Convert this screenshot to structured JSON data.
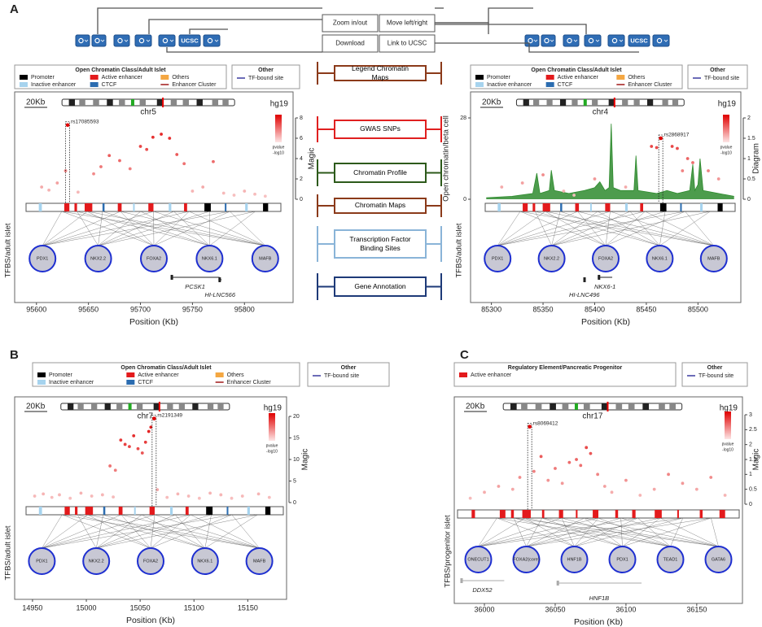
{
  "figure": {
    "toolbar": {
      "callouts": [
        "Zoom in/out",
        "Move left/right",
        "Download",
        "Link to UCSC"
      ],
      "button_label": "UCSC"
    },
    "guide": [
      {
        "text": "Legend Chromatin Maps",
        "color": "#8b3a1a"
      },
      {
        "text": "GWAS SNPs",
        "color": "#e02020"
      },
      {
        "text": "Chromatin Profile",
        "color": "#2d5a1b"
      },
      {
        "text": "Chromatin Maps",
        "color": "#8b3a1a"
      },
      {
        "text": "Transcription Factor Binding Sites",
        "color": "#8ab4d8"
      },
      {
        "text": "Gene Annotation",
        "color": "#1e3a78"
      }
    ],
    "panels": [
      {
        "label": "A",
        "legend_title": "Open Chromatin Class/Adult Islet",
        "legend_items": [
          {
            "name": "Promoter",
            "color": "#000000"
          },
          {
            "name": "Inactive enhancer",
            "color": "#a6d3ee"
          },
          {
            "name": "Active enhancer",
            "color": "#e31a1c"
          },
          {
            "name": "CTCF",
            "color": "#2b6cb0"
          },
          {
            "name": "Others",
            "color": "#f4a742"
          },
          {
            "name": "Enhancer Cluster",
            "color": "#a01818",
            "style": "line"
          }
        ],
        "other_title": "Other",
        "other_items": [
          {
            "name": "TF-bound site",
            "color": "#3a3aa0"
          }
        ],
        "scale": "20Kb",
        "chrom": "chr5",
        "genome": "hg19",
        "ylabel": "Magic",
        "tf_label": "TFBS/adult islet",
        "xlabel": "Position (Kb)",
        "scale_caption": [
          "pvalue",
          "-log10"
        ],
        "xlim": [
          95590,
          95835
        ],
        "xticks": [
          95600,
          95650,
          95700,
          95750,
          95800
        ],
        "ylim": [
          0,
          8
        ],
        "yticks": [
          0,
          2,
          4,
          6,
          8
        ],
        "snps": {
          "x": [
            95605,
            95612,
            95620,
            95628,
            95640,
            95655,
            95662,
            95670,
            95680,
            95690,
            95700,
            95706,
            95712,
            95720,
            95728,
            95735,
            95742,
            95750,
            95760,
            95770,
            95780,
            95790,
            95800,
            95810,
            95820
          ],
          "y": [
            1.2,
            0.9,
            1.6,
            2.8,
            0.7,
            2.5,
            3.2,
            4.3,
            3.8,
            3.0,
            5.2,
            4.9,
            6.1,
            6.4,
            6.0,
            4.4,
            3.5,
            0.8,
            1.2,
            3.7,
            0.6,
            0.4,
            0.8,
            0.5,
            0.3
          ]
        },
        "lead_snp": {
          "name": "rs17085593",
          "x": 95630,
          "y": 7.3
        },
        "tfs": [
          "PDX1",
          "NKX2.2",
          "FOXA2",
          "NKX6.1",
          "MAFB"
        ],
        "genes": [
          {
            "name": "PCSK1",
            "start": 95729,
            "end": 95776
          },
          {
            "name": "HI-LNC566",
            "start": 95775,
            "end": 95778
          }
        ]
      },
      {
        "legend_title": "Open Chromatin Class/Adult Islet",
        "legend_items": [
          {
            "name": "Promoter",
            "color": "#000000"
          },
          {
            "name": "Inactive enhancer",
            "color": "#a6d3ee"
          },
          {
            "name": "Active enhancer",
            "color": "#e31a1c"
          },
          {
            "name": "CTCF",
            "color": "#2b6cb0"
          },
          {
            "name": "Others",
            "color": "#f4a742"
          },
          {
            "name": "Enhancer Cluster",
            "color": "#a01818",
            "style": "line"
          }
        ],
        "other_title": "Other",
        "other_items": [
          {
            "name": "TF-bound site",
            "color": "#3a3aa0"
          }
        ],
        "scale": "20Kb",
        "chrom": "chr4",
        "genome": "hg19",
        "ylabel": "Diagram",
        "tf_label": "TFBS/adult islet",
        "xlabel": "Position (Kb)",
        "scale_caption": [
          "pvalue",
          "-log10"
        ],
        "xlim": [
          85294,
          85536
        ],
        "xticks": [
          85300,
          85350,
          85400,
          85450,
          85500
        ],
        "ylim": [
          0,
          2
        ],
        "yticks": [
          0,
          0.5,
          1,
          1.5,
          2
        ],
        "profile": {
          "ylabel": "Open chromatin/beta cell",
          "ylim": [
            0,
            28
          ],
          "yticks": [
            0,
            28
          ],
          "color": "#2e8b2e",
          "x": [
            85295,
            85320,
            85340,
            85344,
            85347,
            85356,
            85358,
            85361,
            85375,
            85390,
            85400,
            85405,
            85410,
            85414,
            85416,
            85418,
            85425,
            85438,
            85440,
            85442,
            85460,
            85470,
            85480,
            85492,
            85495,
            85497,
            85500,
            85502,
            85505,
            85520,
            85535
          ],
          "y": [
            0.5,
            1,
            2,
            9,
            2,
            3,
            10,
            3,
            2,
            3,
            4,
            6,
            3,
            4,
            26,
            4,
            3,
            3,
            15,
            3,
            2,
            3,
            2,
            3,
            12,
            3,
            5,
            14,
            3,
            2,
            1
          ]
        },
        "snps": {
          "x": [
            85310,
            85330,
            85350,
            85370,
            85380,
            85400,
            85430,
            85455,
            85460,
            85475,
            85480,
            85485,
            85490,
            85495,
            85510,
            85520
          ],
          "y": [
            0.3,
            0.4,
            0.6,
            0.2,
            0.1,
            0.5,
            0.3,
            1.3,
            1.27,
            1.3,
            1.25,
            0.7,
            1.0,
            0.9,
            0.7,
            0.5
          ]
        },
        "lead_snp": {
          "name": "rs2868917",
          "x": 85464,
          "y": 1.5
        },
        "tfs": [
          "PDX1",
          "NKX2.2",
          "FOXA2",
          "NKX6.1",
          "MAFB"
        ],
        "genes": [
          {
            "name": "NKX6-1",
            "start": 85403,
            "end": 85417
          },
          {
            "name": "HI-LNC496",
            "start": 85389,
            "end": 85391
          }
        ]
      },
      {
        "label": "B",
        "legend_title": "Open Chromatin Class/Adult Islet",
        "legend_items": [
          {
            "name": "Promoter",
            "color": "#000000"
          },
          {
            "name": "Inactive enhancer",
            "color": "#a6d3ee"
          },
          {
            "name": "Active enhancer",
            "color": "#e31a1c"
          },
          {
            "name": "CTCF",
            "color": "#2b6cb0"
          },
          {
            "name": "Others",
            "color": "#f4a742"
          },
          {
            "name": "Enhancer Cluster",
            "color": "#a01818",
            "style": "line"
          }
        ],
        "other_title": "Other",
        "other_items": [
          {
            "name": "TF-bound site",
            "color": "#3a3aa0"
          }
        ],
        "scale": "20Kb",
        "chrom": "chr7",
        "genome": "hg19",
        "ylabel": "Magic",
        "tf_label": "TFBS/adult islet",
        "xlabel": "Position (Kb)",
        "scale_caption": [
          "pvalue",
          "-log10"
        ],
        "xlim": [
          14944,
          15183
        ],
        "xticks": [
          14950,
          15000,
          15050,
          15100,
          15150
        ],
        "ylim": [
          0,
          20
        ],
        "yticks": [
          0,
          5,
          10,
          15,
          20
        ],
        "snps": {
          "x": [
            14952,
            14960,
            14968,
            14975,
            14985,
            14995,
            15005,
            15015,
            15025,
            15032,
            15036,
            15040,
            15044,
            15048,
            15052,
            15055,
            15058,
            15060,
            15066,
            15075,
            15085,
            15095,
            15105,
            15115,
            15125,
            15135,
            15145,
            15160,
            15170,
            15022,
            15027
          ],
          "y": [
            1.5,
            2.0,
            1.2,
            1.8,
            1.0,
            2.2,
            1.5,
            1.8,
            1.3,
            14.5,
            13.5,
            13.0,
            15.5,
            12.5,
            11.5,
            14.0,
            16.5,
            17.5,
            3.0,
            1.2,
            2.0,
            1.5,
            1.0,
            2.2,
            1.8,
            1.0,
            1.5,
            2.0,
            1.2,
            8.5,
            7.5
          ]
        },
        "lead_snp": {
          "name": "rs2191349",
          "x": 15063,
          "y": 19.5
        },
        "tfs": [
          "PDX1",
          "NKX2.2",
          "FOXA2",
          "NKX6.1",
          "MAFB"
        ],
        "genes": []
      },
      {
        "label": "C",
        "legend_title": "Regulatory Element/Pancreatic Progenitor",
        "legend_items": [
          {
            "name": "Active enhancer",
            "color": "#e31a1c"
          }
        ],
        "other_title": "Other",
        "other_items": [
          {
            "name": "TF-bound site",
            "color": "#3a3aa0"
          }
        ],
        "scale": "20Kb",
        "chrom": "chr17",
        "genome": "hg19",
        "ylabel": "Magic",
        "tf_label": "TFBS/progenitor islet",
        "xlabel": "Position (Kb)",
        "scale_caption": [
          "pvalue",
          "-log10"
        ],
        "xlim": [
          35981,
          36180
        ],
        "xticks": [
          36000,
          36050,
          36100,
          36150
        ],
        "ylim": [
          0,
          3
        ],
        "yticks": [
          0,
          0.5,
          1,
          1.5,
          2,
          2.5,
          3
        ],
        "snps": {
          "x": [
            35990,
            36000,
            36010,
            36020,
            36025,
            36035,
            36040,
            36045,
            36050,
            36055,
            36060,
            36065,
            36068,
            36072,
            36075,
            36080,
            36085,
            36090,
            36100,
            36110,
            36120,
            36130,
            36140,
            36150,
            36160,
            36170
          ],
          "y": [
            0.2,
            0.4,
            0.6,
            0.5,
            0.9,
            1.1,
            1.6,
            0.8,
            1.2,
            0.7,
            1.4,
            1.5,
            1.3,
            1.9,
            1.7,
            1.0,
            0.6,
            0.4,
            0.8,
            0.3,
            0.5,
            1.0,
            0.7,
            0.5,
            0.9,
            0.3
          ]
        },
        "lead_snp": {
          "name": "rs8069412",
          "x": 36032,
          "y": 2.6
        },
        "tfs": [
          "ONECUT1",
          "FOXA2(core)",
          "HNF1B",
          "PDX1",
          "TEAD1",
          "GATA6"
        ],
        "genes": [
          {
            "name": "DDX52",
            "start": 35983,
            "end": 36014
          },
          {
            "name": "HNF1B",
            "start": 36051,
            "end": 36111
          }
        ]
      }
    ]
  }
}
